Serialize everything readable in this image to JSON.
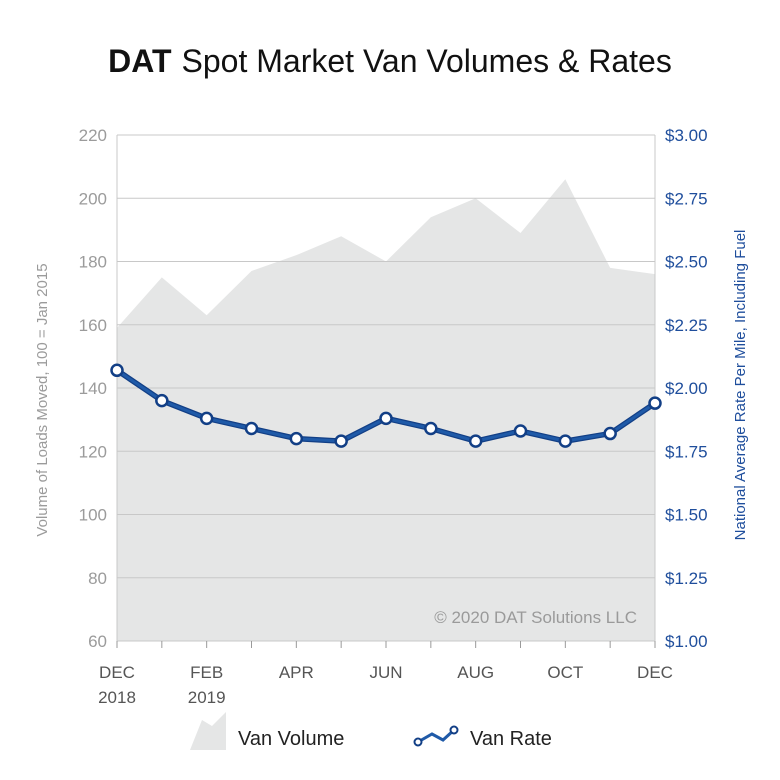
{
  "title": {
    "brand": "DAT",
    "rest": "Spot Market Van Volumes & Rates"
  },
  "colors": {
    "area": "#e5e6e6",
    "line": "#1f5aa8",
    "line_dark": "#123f86",
    "marker_fill": "#ffffff",
    "left_axis_text": "#9b9b9b",
    "right_axis_text": "#1f4e9c",
    "grid": "#c8c8c8",
    "text": "#222222",
    "watermark": "#9a9a9a"
  },
  "watermark": "© 2020 DAT Solutions LLC",
  "legend": {
    "volume_label": "Van Volume",
    "rate_label": "Van Rate"
  },
  "chart_data": {
    "type": "area+line",
    "title": "DAT Spot Market Van Volumes & Rates",
    "x_tick_labels": [
      {
        "line1": "DEC",
        "line2": "2018"
      },
      {
        "line1": "FEB",
        "line2": "2019"
      },
      {
        "line1": "APR",
        "line2": ""
      },
      {
        "line1": "JUN",
        "line2": ""
      },
      {
        "line1": "AUG",
        "line2": ""
      },
      {
        "line1": "OCT",
        "line2": ""
      },
      {
        "line1": "DEC",
        "line2": ""
      }
    ],
    "x_tick_indices": [
      0,
      2,
      4,
      6,
      8,
      10,
      12
    ],
    "left_axis": {
      "label": "Volume of Loads Moved, 100 = Jan 2015",
      "min": 60,
      "max": 220,
      "ticks": [
        "60",
        "80",
        "100",
        "120",
        "140",
        "160",
        "180",
        "200",
        "220"
      ]
    },
    "right_axis": {
      "label": "National Average Rate Per Mile, Including Fuel",
      "min": 1.0,
      "max": 3.0,
      "ticks": [
        "$1.00",
        "$1.25",
        "$1.50",
        "$1.75",
        "$2.00",
        "$2.25",
        "$2.50",
        "$2.75",
        "$3.00"
      ]
    },
    "series": [
      {
        "name": "Van Volume",
        "type": "area",
        "axis": "left",
        "values": [
          159,
          175,
          163,
          177,
          182,
          188,
          180,
          194,
          200,
          189,
          206,
          178,
          176
        ]
      },
      {
        "name": "Van Rate",
        "type": "line",
        "axis": "right",
        "values": [
          2.07,
          1.95,
          1.88,
          1.84,
          1.8,
          1.79,
          1.88,
          1.84,
          1.79,
          1.83,
          1.79,
          1.82,
          1.94
        ]
      }
    ],
    "grid": true,
    "legend_position": "bottom-center"
  }
}
